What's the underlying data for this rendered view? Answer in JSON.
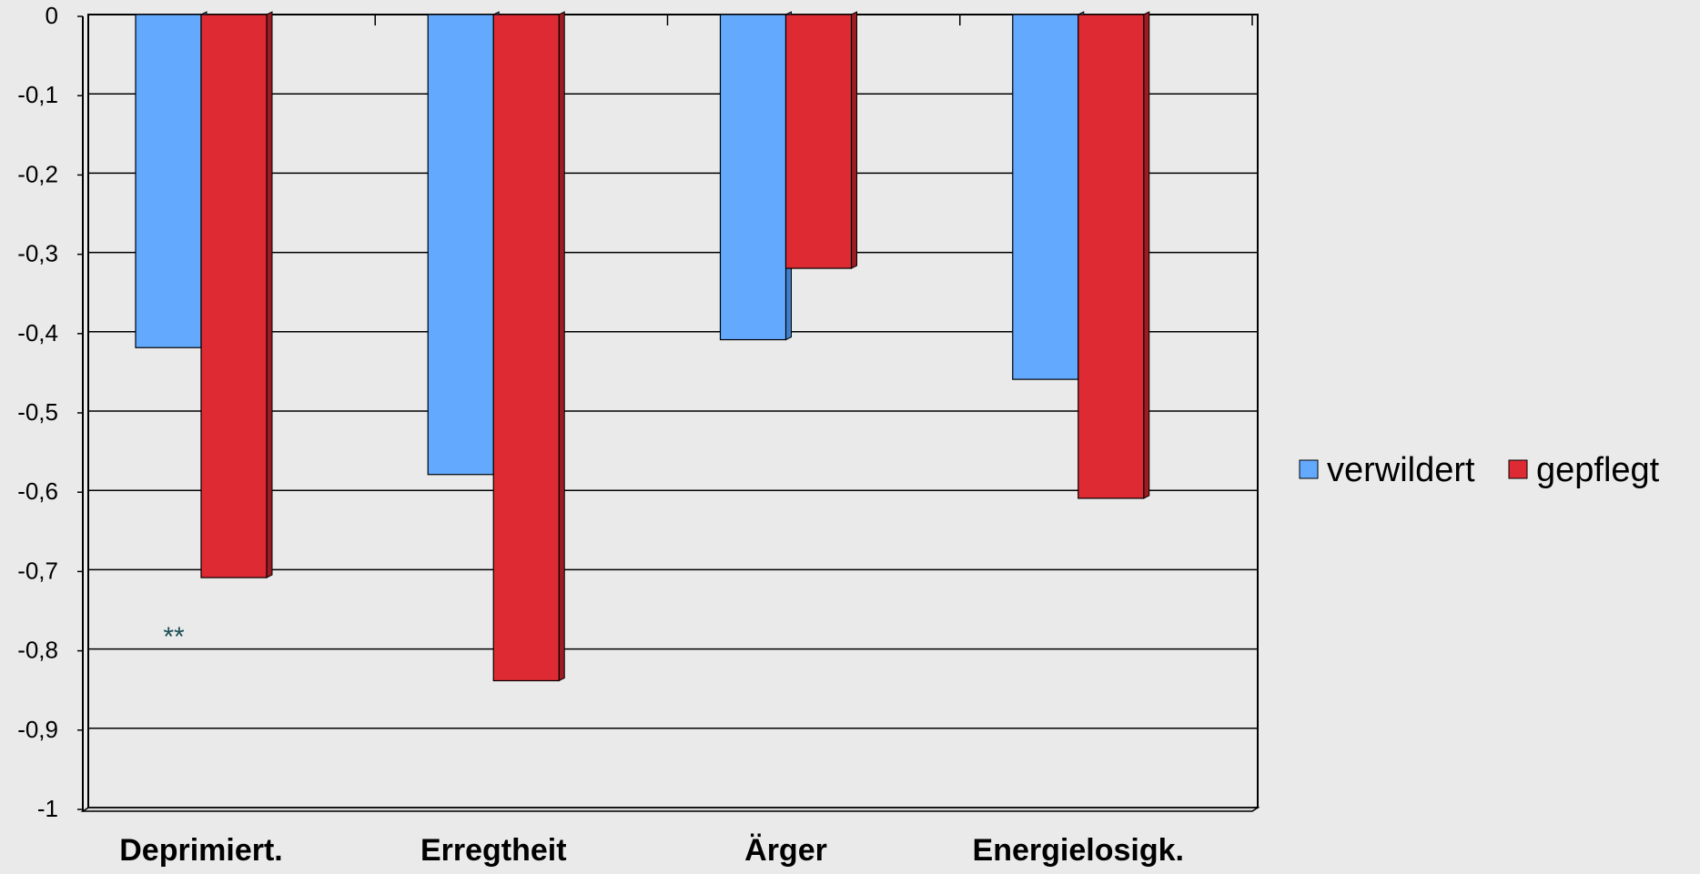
{
  "chart_data": {
    "type": "bar",
    "categories": [
      "Deprimiert.",
      "Erregtheit",
      "Ärger",
      "Energielosigk."
    ],
    "series": [
      {
        "name": "verwildert",
        "values": [
          -0.42,
          -0.58,
          -0.41,
          -0.46
        ],
        "color": "#63aaff"
      },
      {
        "name": "gepflegt",
        "values": [
          -0.71,
          -0.84,
          -0.32,
          -0.61
        ],
        "color": "#de2b33"
      }
    ],
    "ylim": [
      -1,
      0
    ],
    "yticks": [
      0,
      -0.1,
      -0.2,
      -0.3,
      -0.4,
      -0.5,
      -0.6,
      -0.7,
      -0.8,
      -0.9,
      -1
    ],
    "ytick_labels": [
      "0",
      "-0,1",
      "-0,2",
      "-0,3",
      "-0,4",
      "-0,5",
      "-0,6",
      "-0,7",
      "-0,8",
      "-0,9",
      "-1"
    ],
    "grid": true,
    "legend": "right",
    "annotations": [
      {
        "text": "**",
        "category": "Deprimiert.",
        "value": -0.775,
        "color": "#1f4f57"
      }
    ],
    "title": "",
    "xlabel": "",
    "ylabel": ""
  }
}
